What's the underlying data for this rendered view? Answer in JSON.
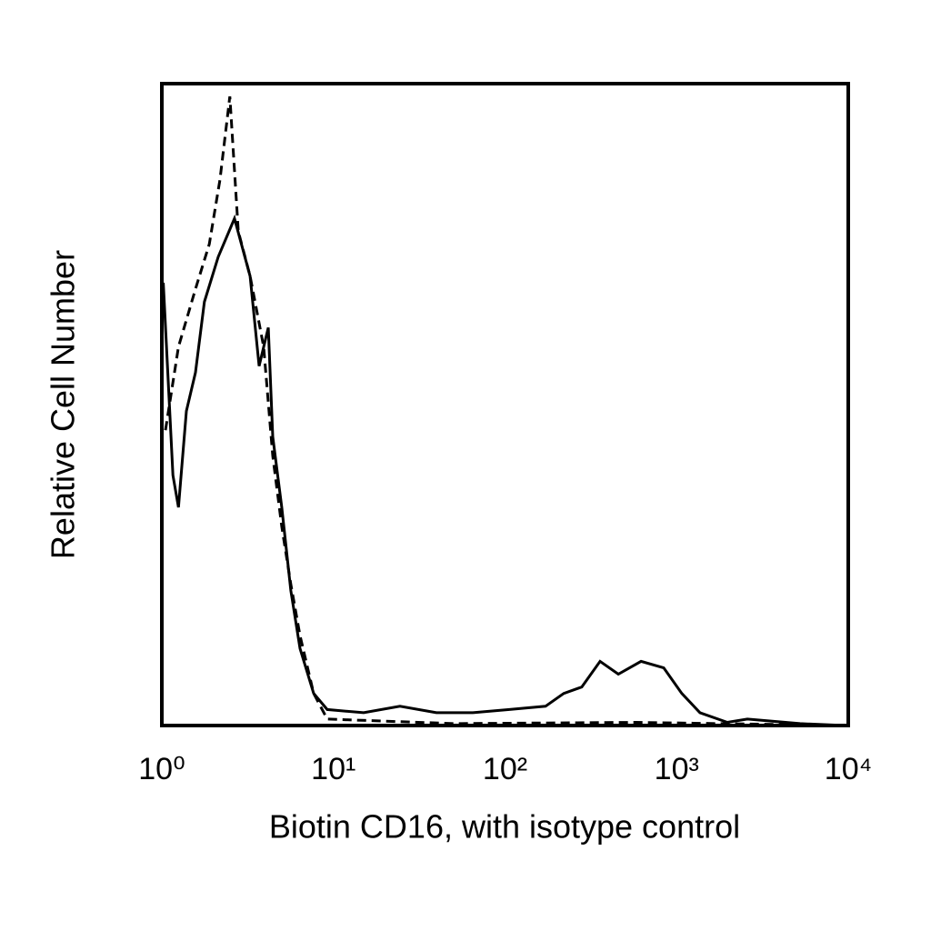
{
  "chart_data": {
    "type": "line",
    "x_label": "Biotin CD16, with isotype control",
    "y_label": "Relative Cell Number",
    "xlog": true,
    "xlim": [
      1,
      10000
    ],
    "xticks": [
      {
        "value": 1,
        "label": "10⁰"
      },
      {
        "value": 10,
        "label": "10¹"
      },
      {
        "value": 100,
        "label": "10²"
      },
      {
        "value": 1000,
        "label": "10³"
      },
      {
        "value": 10000,
        "label": "10⁴"
      }
    ],
    "ylim": [
      0,
      100
    ],
    "series": [
      {
        "color": "#000000",
        "dashed": false,
        "x": [
          1.02,
          1.16,
          1.25,
          1.39,
          1.57,
          1.77,
          2.13,
          2.65,
          3.27,
          3.69,
          4.17,
          4.43,
          5.0,
          5.65,
          6.39,
          7.67,
          9.2,
          15,
          24.4,
          39.8,
          64.9,
          106,
          172,
          220,
          280,
          358,
          457,
          620,
          840,
          1072,
          1368,
          1974,
          2582,
          5240,
          9640
        ],
        "values": [
          69,
          39,
          34,
          49,
          55,
          66,
          73,
          79,
          70,
          56,
          62,
          45,
          34,
          21,
          12,
          5,
          2.5,
          2,
          3,
          2,
          2,
          2.5,
          3,
          5,
          6,
          10,
          8,
          10,
          9,
          5,
          2,
          0.5,
          1,
          0.3,
          0
        ]
      },
      {
        "color": "#000000",
        "dashed": true,
        "x": [
          1.05,
          1.25,
          1.57,
          1.89,
          2.18,
          2.49,
          2.79,
          3.27,
          3.92,
          4.43,
          5.0,
          5.65,
          6.39,
          7.67,
          9.2,
          50.8,
          580,
          9640
        ],
        "values": [
          46,
          59,
          68,
          75,
          85,
          98,
          77,
          70,
          59,
          42,
          31,
          22,
          14,
          5,
          1,
          0.3,
          0.5,
          0
        ]
      }
    ]
  }
}
